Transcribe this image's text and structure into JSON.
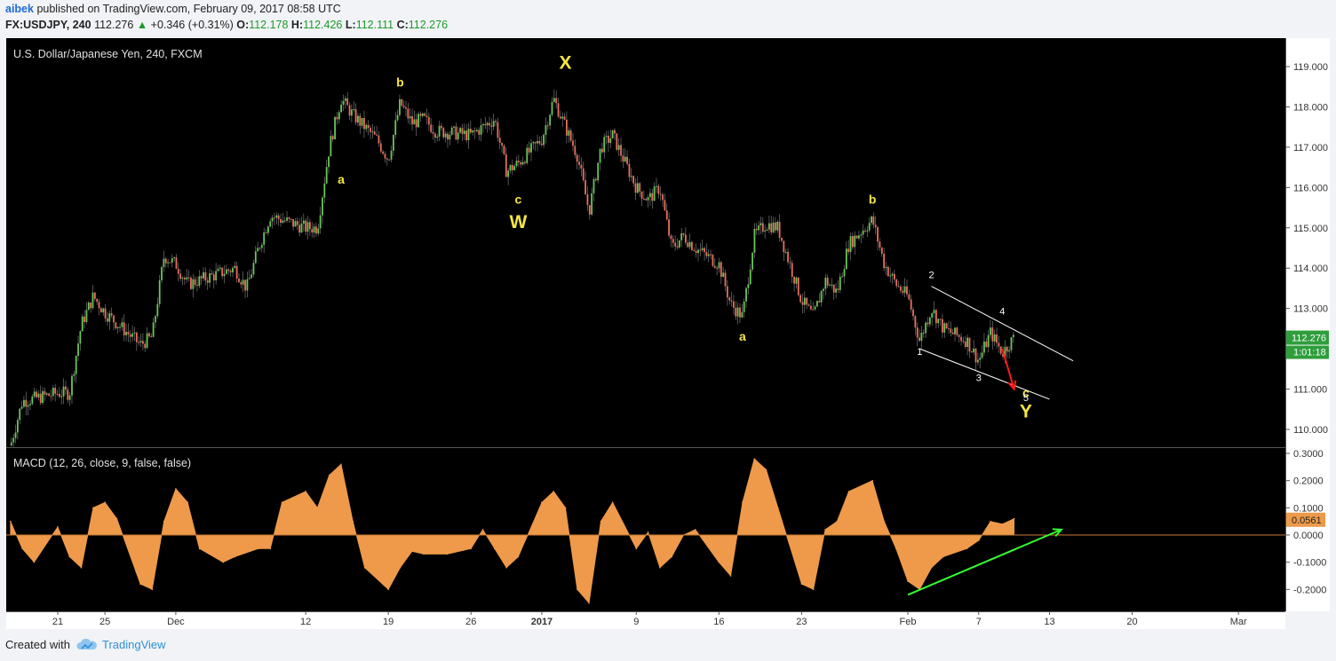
{
  "header": {
    "author": "aibek",
    "published": "published on TradingView.com, February 09, 2017 08:58 UTC",
    "symbol": "FX:USDJPY, 240",
    "last": "112.276",
    "change": "+0.346 (+0.31%)",
    "o_label": "O:",
    "o": "112.178",
    "h_label": "H:",
    "h": "112.426",
    "l_label": "L:",
    "l": "112.111",
    "c_label": "C:",
    "c": "112.276"
  },
  "footer": {
    "created_with": "Created with",
    "brand": "TradingView"
  },
  "colors": {
    "background": "#000000",
    "up": "#6bc55a",
    "down": "#e8705e",
    "macd": "#ee9a4a",
    "wave": "#f5e642",
    "channel": "#ffffff",
    "arrow_down": "#ff1a1a",
    "arrow_up": "#33ff33",
    "price_tag": "#2e9e3b"
  },
  "chart_data": [
    {
      "type": "candlestick",
      "title": "U.S. Dollar/Japanese Yen, 240, FXCM",
      "ylim": [
        109.6,
        119.5
      ],
      "y_ticks": [
        "110.000",
        "111.000",
        "112.000",
        "113.000",
        "114.000",
        "115.000",
        "116.000",
        "117.000",
        "118.000",
        "119.000"
      ],
      "x_ticks": [
        "21",
        "25",
        "Dec",
        "12",
        "19",
        "26",
        "2017",
        "9",
        "16",
        "23",
        "Feb",
        "7",
        "13",
        "20",
        "Mar"
      ],
      "last_price": "112.276",
      "countdown": "1:01:18",
      "price_path": [
        [
          "2016-11-17",
          109.6
        ],
        [
          "2016-11-18",
          110.7
        ],
        [
          "2016-11-21",
          110.9
        ],
        [
          "2016-11-22",
          110.9
        ],
        [
          "2016-11-23",
          112.6
        ],
        [
          "2016-11-24",
          113.3
        ],
        [
          "2016-11-25",
          112.9
        ],
        [
          "2016-11-28",
          112.1
        ],
        [
          "2016-11-29",
          112.3
        ],
        [
          "2016-11-30",
          114.3
        ],
        [
          "2016-12-01",
          114.1
        ],
        [
          "2016-12-02",
          113.6
        ],
        [
          "2016-12-05",
          113.9
        ],
        [
          "2016-12-06",
          114.0
        ],
        [
          "2016-12-07",
          113.5
        ],
        [
          "2016-12-08",
          114.5
        ],
        [
          "2016-12-09",
          115.3
        ],
        [
          "2016-12-12",
          115.0
        ],
        [
          "2016-12-13",
          115.0
        ],
        [
          "2016-12-14",
          117.0
        ],
        [
          "2016-12-15",
          118.2
        ],
        [
          "2016-12-16",
          117.8
        ],
        [
          "2016-12-18",
          117.2
        ],
        [
          "2016-12-19",
          116.7
        ],
        [
          "2016-12-20",
          118.1
        ],
        [
          "2016-12-21",
          117.6
        ],
        [
          "2016-12-22",
          117.7
        ],
        [
          "2016-12-23",
          117.4
        ],
        [
          "2016-12-26",
          117.3
        ],
        [
          "2016-12-27",
          117.5
        ],
        [
          "2016-12-28",
          117.7
        ],
        [
          "2016-12-29",
          116.4
        ],
        [
          "2016-12-30",
          116.6
        ],
        [
          "2017-01-01",
          117.2
        ],
        [
          "2017-01-02",
          118.2
        ],
        [
          "2017-01-03",
          117.5
        ],
        [
          "2017-01-04",
          116.8
        ],
        [
          "2017-01-05",
          115.4
        ],
        [
          "2017-01-06",
          117.0
        ],
        [
          "2017-01-07",
          117.3
        ],
        [
          "2017-01-09",
          116.0
        ],
        [
          "2017-01-10",
          115.7
        ],
        [
          "2017-01-11",
          116.0
        ],
        [
          "2017-01-12",
          114.5
        ],
        [
          "2017-01-13",
          114.8
        ],
        [
          "2017-01-14",
          114.5
        ],
        [
          "2017-01-16",
          114.1
        ],
        [
          "2017-01-17",
          113.1
        ],
        [
          "2017-01-18",
          112.8
        ],
        [
          "2017-01-19",
          114.8
        ],
        [
          "2017-01-20",
          115.1
        ],
        [
          "2017-01-21",
          115.0
        ],
        [
          "2017-01-23",
          113.2
        ],
        [
          "2017-01-24",
          112.8
        ],
        [
          "2017-01-25",
          113.7
        ],
        [
          "2017-01-26",
          113.4
        ],
        [
          "2017-01-27",
          114.6
        ],
        [
          "2017-01-29",
          115.2
        ],
        [
          "2017-01-30",
          114.1
        ],
        [
          "2017-01-31",
          113.6
        ],
        [
          "2017-02-01",
          113.3
        ],
        [
          "2017-02-02",
          112.2
        ],
        [
          "2017-02-03",
          113.0
        ],
        [
          "2017-02-04",
          112.5
        ],
        [
          "2017-02-06",
          112.2
        ],
        [
          "2017-02-07",
          111.7
        ],
        [
          "2017-02-08",
          112.4
        ],
        [
          "2017-02-09",
          111.9
        ],
        [
          "2017-02-10",
          112.28
        ]
      ],
      "annotations": {
        "wave_labels": [
          {
            "text": "X",
            "date": "2017-01-03",
            "price": 118.95,
            "size": "large"
          },
          {
            "text": "b",
            "date": "2016-12-20",
            "price": 118.5,
            "size": "small"
          },
          {
            "text": "a",
            "date": "2016-12-15",
            "price": 116.1,
            "size": "small"
          },
          {
            "text": "c",
            "date": "2016-12-30",
            "price": 115.6,
            "size": "small"
          },
          {
            "text": "W",
            "date": "2016-12-30",
            "price": 115.0,
            "size": "large"
          },
          {
            "text": "a",
            "date": "2017-01-18",
            "price": 112.2,
            "size": "small"
          },
          {
            "text": "b",
            "date": "2017-01-29",
            "price": 115.6,
            "size": "small"
          },
          {
            "text": "c",
            "date": "2017-02-11",
            "price": 110.8,
            "size": "small"
          },
          {
            "text": "Y",
            "date": "2017-02-11",
            "price": 110.3,
            "size": "large"
          }
        ],
        "sub_waves": [
          {
            "text": "1",
            "date": "2017-02-02",
            "price": 111.85
          },
          {
            "text": "2",
            "date": "2017-02-03",
            "price": 113.75
          },
          {
            "text": "3",
            "date": "2017-02-07",
            "price": 111.2
          },
          {
            "text": "4",
            "date": "2017-02-09",
            "price": 112.85
          },
          {
            "text": "5",
            "date": "2017-02-11",
            "price": 110.7
          }
        ],
        "channel_upper": [
          [
            "2017-02-03",
            113.55
          ],
          [
            "2017-02-15",
            111.7
          ]
        ],
        "channel_lower": [
          [
            "2017-02-02",
            112.0
          ],
          [
            "2017-02-13",
            110.75
          ]
        ],
        "arrow_down": [
          [
            "2017-02-09",
            112.0
          ],
          [
            "2017-02-10",
            111.0
          ]
        ]
      }
    },
    {
      "type": "area",
      "title": "MACD (12, 26, close, 9, false, false)",
      "ylim": [
        -0.27,
        0.31
      ],
      "y_ticks": [
        "0.3000",
        "0.2000",
        "0.1000",
        "0.0000",
        "-0.1000",
        "-0.2000"
      ],
      "last_value": "0.0561",
      "x": [
        "2016-11-17",
        "2016-11-18",
        "2016-11-19",
        "2016-11-21",
        "2016-11-22",
        "2016-11-23",
        "2016-11-24",
        "2016-11-25",
        "2016-11-26",
        "2016-11-28",
        "2016-11-29",
        "2016-11-30",
        "2016-12-01",
        "2016-12-02",
        "2016-12-03",
        "2016-12-05",
        "2016-12-06",
        "2016-12-08",
        "2016-12-09",
        "2016-12-10",
        "2016-12-12",
        "2016-12-13",
        "2016-12-14",
        "2016-12-15",
        "2016-12-16",
        "2016-12-17",
        "2016-12-19",
        "2016-12-20",
        "2016-12-21",
        "2016-12-22",
        "2016-12-24",
        "2016-12-26",
        "2016-12-27",
        "2016-12-28",
        "2016-12-29",
        "2016-12-30",
        "2017-01-01",
        "2017-01-02",
        "2017-01-03",
        "2017-01-04",
        "2017-01-05",
        "2017-01-06",
        "2017-01-07",
        "2017-01-09",
        "2017-01-10",
        "2017-01-11",
        "2017-01-12",
        "2017-01-13",
        "2017-01-14",
        "2017-01-16",
        "2017-01-17",
        "2017-01-18",
        "2017-01-19",
        "2017-01-20",
        "2017-01-21",
        "2017-01-23",
        "2017-01-24",
        "2017-01-25",
        "2017-01-26",
        "2017-01-27",
        "2017-01-29",
        "2017-01-30",
        "2017-01-31",
        "2017-02-01",
        "2017-02-02",
        "2017-02-03",
        "2017-02-04",
        "2017-02-06",
        "2017-02-07",
        "2017-02-08",
        "2017-02-09",
        "2017-02-10"
      ],
      "values": [
        0.05,
        -0.05,
        -0.1,
        0.03,
        -0.08,
        -0.12,
        0.1,
        0.12,
        0.06,
        -0.18,
        -0.2,
        0.05,
        0.17,
        0.12,
        -0.05,
        -0.1,
        -0.08,
        -0.05,
        -0.05,
        0.12,
        0.16,
        0.1,
        0.22,
        0.26,
        0.05,
        -0.12,
        -0.2,
        -0.12,
        -0.06,
        -0.07,
        -0.07,
        -0.05,
        0.02,
        -0.05,
        -0.12,
        -0.08,
        0.12,
        0.16,
        0.1,
        -0.2,
        -0.25,
        0.05,
        0.12,
        -0.05,
        0.01,
        -0.12,
        -0.08,
        0.0,
        0.02,
        -0.1,
        -0.15,
        0.12,
        0.28,
        0.24,
        0.1,
        -0.18,
        -0.2,
        0.02,
        0.05,
        0.16,
        0.2,
        0.05,
        -0.05,
        -0.17,
        -0.2,
        -0.12,
        -0.08,
        -0.05,
        -0.02,
        0.05,
        0.04,
        0.06
      ],
      "arrow_up": [
        [
          "2017-02-01",
          -0.22
        ],
        [
          "2017-02-14",
          0.02
        ]
      ]
    }
  ]
}
